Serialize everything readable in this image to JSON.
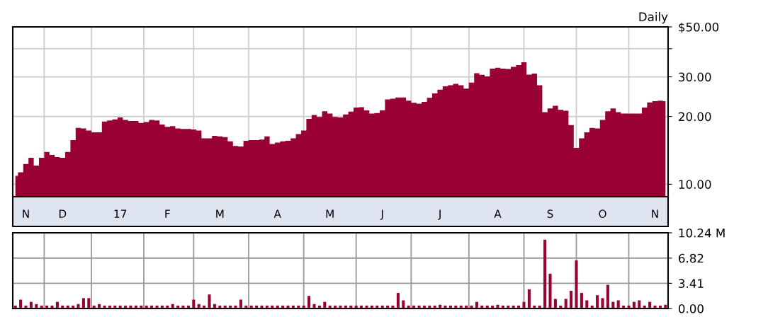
{
  "chart_data": [
    {
      "type": "area",
      "log": "y",
      "grid": true,
      "annotations": [
        "Daily"
      ],
      "categories": [
        null,
        null,
        "N",
        null,
        null,
        null,
        null,
        null,
        null,
        "D",
        null,
        null,
        null,
        null,
        null,
        null,
        null,
        null,
        null,
        null,
        "17",
        null,
        null,
        null,
        null,
        null,
        null,
        null,
        null,
        "F",
        null,
        null,
        null,
        null,
        null,
        null,
        null,
        null,
        null,
        "M",
        null,
        null,
        null,
        null,
        null,
        null,
        null,
        null,
        null,
        null,
        "A",
        null,
        null,
        null,
        null,
        null,
        null,
        null,
        null,
        null,
        "M",
        null,
        null,
        null,
        null,
        null,
        null,
        null,
        null,
        null,
        "J",
        null,
        null,
        null,
        null,
        null,
        null,
        null,
        null,
        null,
        null,
        "J",
        null,
        null,
        null,
        null,
        null,
        null,
        null,
        null,
        null,
        null,
        "A",
        null,
        null,
        null,
        null,
        null,
        null,
        null,
        null,
        null,
        "S",
        null,
        null,
        null,
        null,
        null,
        null,
        null,
        null,
        null,
        "O",
        null,
        null,
        null,
        null,
        null,
        null,
        null,
        null,
        null,
        "N",
        null,
        null
      ],
      "ylim": [
        8.8,
        50
      ],
      "yticks": [
        {
          "value": 10,
          "label": "10.00"
        },
        {
          "value": 20,
          "label": "20.00"
        },
        {
          "value": 30,
          "label": "30.00"
        },
        {
          "value": 40,
          "label": null
        },
        {
          "value": 50,
          "label": "$50.00"
        }
      ],
      "series": [
        {
          "color": "#990033",
          "values": [
            10.9,
            11.3,
            12.3,
            13.1,
            12.1,
            13.1,
            13.9,
            13.5,
            13.2,
            13.1,
            13.9,
            15.7,
            17.8,
            17.7,
            17.3,
            17.0,
            17.0,
            19.0,
            19.2,
            19.4,
            19.8,
            19.3,
            19.1,
            19.1,
            18.7,
            18.9,
            19.3,
            19.2,
            18.4,
            18.0,
            18.1,
            17.7,
            17.6,
            17.6,
            17.5,
            17.3,
            16.0,
            16.0,
            16.4,
            16.3,
            16.2,
            15.5,
            14.8,
            14.7,
            15.6,
            15.7,
            15.7,
            15.8,
            16.3,
            15.1,
            15.3,
            15.5,
            15.6,
            16.0,
            16.7,
            17.3,
            19.5,
            20.3,
            19.9,
            21.1,
            20.6,
            19.9,
            19.8,
            20.4,
            21.0,
            21.9,
            22.0,
            21.3,
            20.6,
            20.7,
            21.3,
            23.8,
            24.0,
            24.3,
            24.3,
            23.5,
            23.0,
            22.8,
            23.2,
            24.2,
            25.3,
            26.3,
            27.2,
            27.5,
            27.9,
            27.5,
            26.6,
            28.3,
            31.1,
            30.6,
            30.1,
            32.6,
            32.9,
            32.6,
            32.5,
            33.2,
            33.8,
            34.8,
            30.7,
            31.0,
            27.5,
            20.9,
            21.7,
            22.3,
            21.4,
            21.2,
            18.3,
            14.5,
            16.0,
            17.0,
            17.8,
            17.7,
            19.3,
            21.1,
            21.7,
            20.9,
            20.6,
            20.6,
            20.6,
            20.6,
            21.9,
            23.1,
            23.4,
            23.5,
            23.4
          ]
        }
      ]
    },
    {
      "type": "bar",
      "grid": true,
      "tick_labels": "y",
      "categories": [
        null,
        null,
        null,
        null,
        null,
        null,
        null,
        null,
        null,
        null,
        null,
        null,
        null,
        null,
        null,
        null,
        null,
        null,
        null,
        null,
        null,
        null,
        null,
        null,
        null,
        null,
        null,
        null,
        null,
        null,
        null,
        null,
        null,
        null,
        null,
        null,
        null,
        null,
        null,
        null,
        null,
        null,
        null,
        null,
        null,
        null,
        null,
        null,
        null,
        null,
        null,
        null,
        null,
        null,
        null,
        null,
        null,
        null,
        null,
        null,
        null,
        null,
        null,
        null,
        null,
        null,
        null,
        null,
        null,
        null,
        null,
        null,
        null,
        null,
        null,
        null,
        null,
        null,
        null,
        null,
        null,
        null,
        null,
        null,
        null,
        null,
        null,
        null,
        null,
        null,
        null,
        null,
        null,
        null,
        null,
        null,
        null,
        null,
        null,
        null,
        null,
        null,
        null,
        null,
        null,
        null,
        null,
        null,
        null,
        null,
        null,
        null,
        null,
        null,
        null,
        null,
        null,
        null,
        null,
        null,
        null,
        null,
        null,
        null,
        null
      ],
      "ylim": [
        0,
        10.24
      ],
      "yticks": [
        {
          "value": 0,
          "label": "0.00"
        },
        {
          "value": 3.41,
          "label": "3.41"
        },
        {
          "value": 6.82,
          "label": "6.82"
        },
        {
          "value": 10.24,
          "label": "10.24 M"
        }
      ],
      "series": [
        {
          "color": "#990033",
          "values": [
            0.4,
            1.2,
            0.4,
            0.9,
            0.6,
            0.4,
            0.4,
            0.4,
            0.9,
            0.4,
            0.4,
            0.4,
            0.6,
            1.4,
            1.4,
            0.4,
            0.6,
            0.4,
            0.4,
            0.4,
            0.4,
            0.4,
            0.4,
            0.4,
            0.4,
            0.4,
            0.4,
            0.4,
            0.4,
            0.4,
            0.6,
            0.4,
            0.4,
            0.4,
            1.2,
            0.6,
            0.4,
            1.9,
            0.6,
            0.4,
            0.4,
            0.4,
            0.4,
            1.2,
            0.4,
            0.4,
            0.4,
            0.4,
            0.4,
            0.4,
            0.4,
            0.4,
            0.4,
            0.4,
            0.4,
            0.4,
            1.7,
            0.6,
            0.4,
            0.9,
            0.4,
            0.4,
            0.4,
            0.4,
            0.4,
            0.4,
            0.4,
            0.4,
            0.4,
            0.4,
            0.4,
            0.4,
            0.4,
            2.1,
            1.1,
            0.4,
            0.4,
            0.4,
            0.4,
            0.4,
            0.4,
            0.5,
            0.4,
            0.4,
            0.4,
            0.4,
            0.4,
            0.4,
            0.9,
            0.4,
            0.4,
            0.4,
            0.5,
            0.4,
            0.4,
            0.4,
            0.4,
            0.9,
            2.6,
            0.4,
            0.4,
            9.3,
            4.7,
            1.3,
            0.4,
            1.3,
            2.4,
            6.5,
            2.1,
            1.1,
            0.4,
            1.8,
            1.4,
            3.2,
            0.9,
            1.1,
            0.4,
            0.4,
            0.9,
            1.1,
            0.4,
            0.9,
            0.4,
            0.4,
            0.5
          ]
        }
      ]
    }
  ]
}
